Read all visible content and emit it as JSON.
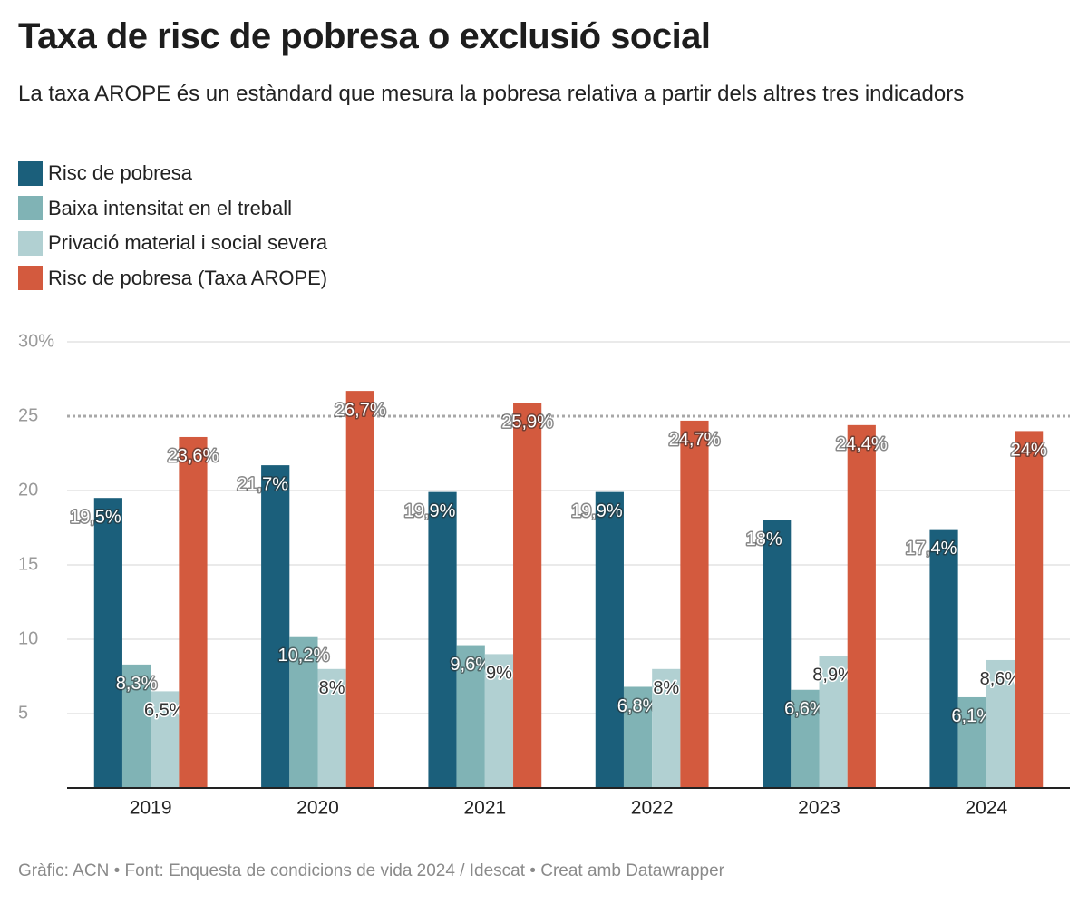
{
  "chart_data": {
    "type": "bar",
    "title": "Taxa de risc de pobresa o exclusió social",
    "subtitle": "La taxa AROPE és un estàndard que mesura la pobresa relativa a partir dels altres tres indicadors",
    "source": "Gràfic: ACN • Font: Enquesta de condicions de vida 2024 / Idescat • Creat amb Datawrapper",
    "categories": [
      "2019",
      "2020",
      "2021",
      "2022",
      "2023",
      "2024"
    ],
    "series": [
      {
        "name": "Risc de pobresa",
        "color": "#1b5f7b",
        "values": [
          19.5,
          21.7,
          19.9,
          19.9,
          18,
          17.4
        ],
        "value_labels": [
          "19,5%",
          "21,7%",
          "19,9%",
          "19,9%",
          "18%",
          "17,4%"
        ]
      },
      {
        "name": "Baixa intensitat en el treball",
        "color": "#80b3b5",
        "values": [
          8.3,
          10.2,
          9.6,
          6.8,
          6.6,
          6.1
        ],
        "value_labels": [
          "8,3%",
          "10,2%",
          "9,6%",
          "6,8%",
          "6,6%",
          "6,1%"
        ]
      },
      {
        "name": "Privació material i social severa",
        "color": "#b1d0d2",
        "values": [
          6.5,
          8,
          9,
          8,
          8.9,
          8.6
        ],
        "value_labels": [
          "6,5%",
          "8%",
          "9%",
          "8%",
          "8,9%",
          "8,6%"
        ]
      },
      {
        "name": "Risc de pobresa (Taxa AROPE)",
        "color": "#d35a3e",
        "values": [
          23.6,
          26.7,
          25.9,
          24.7,
          24.4,
          24
        ],
        "value_labels": [
          "23,6%",
          "26,7%",
          "25,9%",
          "24,7%",
          "24,4%",
          "24%"
        ]
      }
    ],
    "ylim": [
      0,
      30
    ],
    "yticks": [
      5,
      10,
      15,
      20,
      25,
      {
        "value": 30,
        "label": "30%"
      }
    ],
    "reference_line": 25,
    "grid": true
  }
}
